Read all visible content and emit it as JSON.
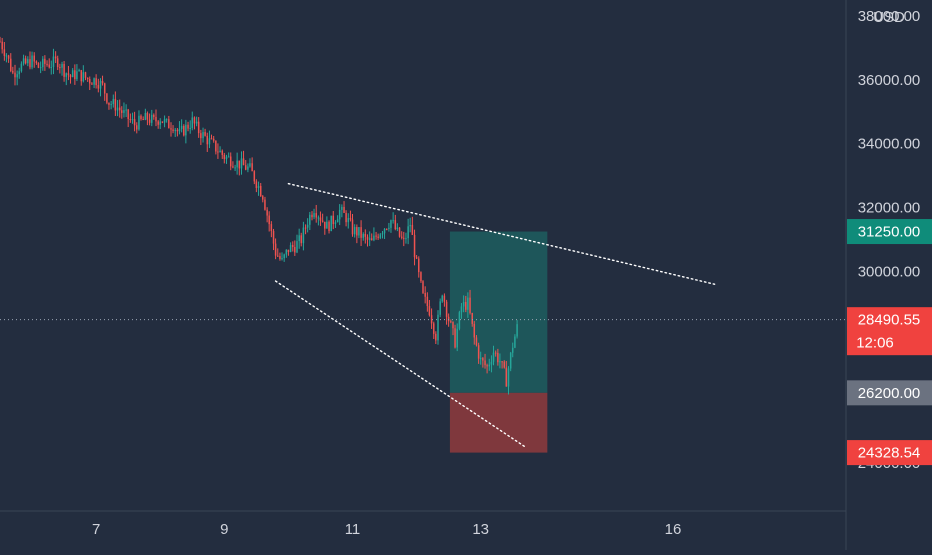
{
  "chart_data": {
    "type": "candlestick",
    "currency_label": "USD",
    "colors": {
      "background": "#232d3f",
      "up": "#26a69a",
      "down": "#ef5350",
      "axis_text": "#d1d4dc",
      "separator": "#3a4556",
      "profit_zone": "#1e5b5d",
      "loss_zone": "#8a3a3d",
      "trendline": "#ffffff"
    },
    "y_axis": {
      "range": [
        22500,
        38500
      ],
      "ticks": [
        {
          "value": 38000,
          "label": "38000.00"
        },
        {
          "value": 36000,
          "label": "36000.00"
        },
        {
          "value": 34000,
          "label": "34000.00"
        },
        {
          "value": 32000,
          "label": "32000.00"
        },
        {
          "value": 30000,
          "label": "30000.00"
        },
        {
          "value": 24000,
          "label": "24000.00"
        }
      ]
    },
    "x_axis": {
      "range": [
        5.5,
        18.7
      ],
      "ticks": [
        {
          "value": 7,
          "label": "7"
        },
        {
          "value": 9,
          "label": "9"
        },
        {
          "value": 11,
          "label": "11"
        },
        {
          "value": 13,
          "label": "13"
        },
        {
          "value": 16,
          "label": "16"
        }
      ]
    },
    "price_badges": [
      {
        "value": 31250,
        "label": "31250.00",
        "color": "#0f8c7a"
      },
      {
        "value": 28490.55,
        "label": "28490.55",
        "sublabel": "12:06",
        "color": "#f0423f"
      },
      {
        "value": 26200,
        "label": "26200.00",
        "color": "#6b7280"
      },
      {
        "value": 24328.54,
        "label": "24328.54",
        "color": "#f0423f"
      }
    ],
    "current_price": 28490.55,
    "position": {
      "type": "long",
      "start_x": 12.52,
      "end_x": 14.04,
      "entry": 26200,
      "target": 31250,
      "stop": 24328.54
    },
    "trendlines": [
      {
        "name": "upper",
        "from": [
          10.0,
          32750
        ],
        "to": [
          16.65,
          29600
        ]
      },
      {
        "name": "lower",
        "from": [
          9.8,
          29700
        ],
        "to": [
          13.7,
          24500
        ]
      }
    ],
    "price_series": [
      [
        5.5,
        37200
      ],
      [
        5.6,
        36800
      ],
      [
        5.7,
        36200
      ],
      [
        5.8,
        36400
      ],
      [
        5.9,
        36500
      ],
      [
        6.0,
        36600
      ],
      [
        6.1,
        36400
      ],
      [
        6.2,
        36500
      ],
      [
        6.3,
        36500
      ],
      [
        6.4,
        36600
      ],
      [
        6.5,
        36300
      ],
      [
        6.6,
        36100
      ],
      [
        6.7,
        36200
      ],
      [
        6.8,
        36100
      ],
      [
        6.9,
        36000
      ],
      [
        7.0,
        36000
      ],
      [
        7.1,
        35800
      ],
      [
        7.2,
        35300
      ],
      [
        7.3,
        35200
      ],
      [
        7.4,
        35000
      ],
      [
        7.5,
        34800
      ],
      [
        7.6,
        34600
      ],
      [
        7.7,
        34700
      ],
      [
        7.8,
        34800
      ],
      [
        7.9,
        34700
      ],
      [
        8.0,
        34800
      ],
      [
        8.1,
        34600
      ],
      [
        8.2,
        34600
      ],
      [
        8.3,
        34300
      ],
      [
        8.4,
        34500
      ],
      [
        8.5,
        34700
      ],
      [
        8.6,
        34400
      ],
      [
        8.7,
        34200
      ],
      [
        8.8,
        34000
      ],
      [
        8.9,
        33800
      ],
      [
        9.0,
        33600
      ],
      [
        9.1,
        33500
      ],
      [
        9.2,
        33400
      ],
      [
        9.3,
        33300
      ],
      [
        9.4,
        33200
      ],
      [
        9.5,
        32800
      ],
      [
        9.6,
        32400
      ],
      [
        9.7,
        31500
      ],
      [
        9.8,
        30600
      ],
      [
        9.9,
        30300
      ],
      [
        10.0,
        30700
      ],
      [
        10.1,
        30800
      ],
      [
        10.2,
        31000
      ],
      [
        10.3,
        31600
      ],
      [
        10.4,
        32000
      ],
      [
        10.5,
        31700
      ],
      [
        10.6,
        31400
      ],
      [
        10.7,
        31600
      ],
      [
        10.8,
        31900
      ],
      [
        10.9,
        31700
      ],
      [
        11.0,
        31300
      ],
      [
        11.1,
        31200
      ],
      [
        11.2,
        31000
      ],
      [
        11.3,
        30900
      ],
      [
        11.4,
        31200
      ],
      [
        11.5,
        31400
      ],
      [
        11.6,
        31600
      ],
      [
        11.7,
        31200
      ],
      [
        11.8,
        30900
      ],
      [
        11.9,
        31500
      ],
      [
        12.0,
        30200
      ],
      [
        12.1,
        29200
      ],
      [
        12.2,
        28800
      ],
      [
        12.3,
        28000
      ],
      [
        12.4,
        29400
      ],
      [
        12.5,
        28500
      ],
      [
        12.6,
        27800
      ],
      [
        12.7,
        28900
      ],
      [
        12.8,
        29000
      ],
      [
        12.9,
        27900
      ],
      [
        13.0,
        27200
      ],
      [
        13.1,
        27000
      ],
      [
        13.2,
        27500
      ],
      [
        13.3,
        27200
      ],
      [
        13.4,
        26600
      ],
      [
        13.5,
        27700
      ],
      [
        13.6,
        28490.55
      ]
    ]
  }
}
